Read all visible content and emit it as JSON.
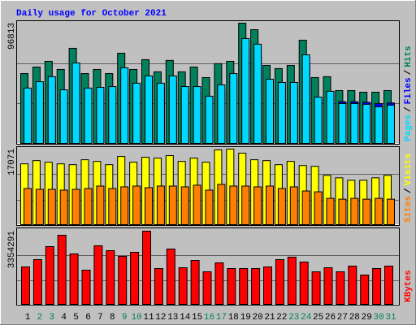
{
  "chart_data": [
    {
      "type": "bar",
      "title": "Daily usage for October 2021",
      "ylim": [
        0,
        96813
      ],
      "yticks": [
        96813
      ],
      "legend_separator": "/",
      "series": [
        {
          "name": "Hits",
          "color": "#00805c",
          "values": [
            56500,
            61700,
            66300,
            59800,
            76700,
            56500,
            59800,
            56500,
            72800,
            59800,
            67600,
            57900,
            67000,
            57900,
            61700,
            53300,
            64400,
            66300,
            96813,
            91600,
            63000,
            60500,
            63000,
            83200,
            53300,
            54000,
            42900,
            42900,
            41600,
            41600,
            42900
          ]
        },
        {
          "name": "Files",
          "color": "#0000ff",
          "values": [
            40400,
            45000,
            48600,
            39100,
            58500,
            40400,
            41000,
            41500,
            55000,
            43900,
            49100,
            43900,
            49100,
            41500,
            41500,
            34500,
            42700,
            50800,
            76000,
            72000,
            46800,
            44500,
            44500,
            64300,
            33900,
            38100,
            34000,
            34000,
            33500,
            32500,
            33000
          ]
        },
        {
          "name": "Pages",
          "color": "#00d8ff",
          "values": [
            44900,
            50000,
            54000,
            43500,
            65000,
            44900,
            45500,
            46100,
            61100,
            48800,
            54600,
            48800,
            54600,
            46100,
            46100,
            38400,
            47500,
            56500,
            84500,
            80000,
            52000,
            49400,
            49400,
            71500,
            37700,
            42300,
            32500,
            32500,
            31900,
            29900,
            31200
          ]
        }
      ]
    },
    {
      "type": "bar",
      "ylim": [
        0,
        17071
      ],
      "yticks": [
        17071
      ],
      "legend_separator": "/",
      "series": [
        {
          "name": "Visits",
          "color": "#ffff00",
          "values": [
            13770,
            14500,
            14140,
            13770,
            13590,
            14690,
            14320,
            13590,
            15420,
            14140,
            15240,
            15060,
            15610,
            14320,
            15060,
            14140,
            16890,
            17071,
            16160,
            14690,
            14500,
            13590,
            14320,
            13400,
            13220,
            11200,
            10650,
            10100,
            10100,
            10650,
            11200
          ]
        },
        {
          "name": "Sites",
          "color": "#ff8000",
          "values": [
            8260,
            8080,
            8080,
            7900,
            8080,
            8260,
            8810,
            8260,
            8630,
            8810,
            8450,
            8810,
            8810,
            8630,
            9000,
            7900,
            9180,
            8810,
            8810,
            8630,
            8810,
            8260,
            8630,
            7710,
            7530,
            6060,
            5880,
            6060,
            5880,
            6060,
            5880
          ]
        }
      ]
    },
    {
      "type": "bar",
      "ylim": [
        0,
        3354291
      ],
      "yticks": [
        3354291
      ],
      "categories": [
        "1",
        "2",
        "3",
        "4",
        "5",
        "6",
        "7",
        "8",
        "9",
        "10",
        "11",
        "12",
        "13",
        "14",
        "15",
        "16",
        "17",
        "18",
        "19",
        "20",
        "21",
        "22",
        "23",
        "24",
        "25",
        "26",
        "27",
        "28",
        "29",
        "30",
        "31"
      ],
      "weekend": [
        false,
        true,
        true,
        false,
        false,
        false,
        false,
        false,
        true,
        true,
        false,
        false,
        false,
        false,
        false,
        true,
        true,
        false,
        false,
        false,
        false,
        false,
        true,
        true,
        false,
        false,
        false,
        false,
        false,
        true,
        true
      ],
      "weekend_color": "#00805c",
      "series": [
        {
          "name": "KBytes",
          "color": "#ff0000",
          "values": [
            1732000,
            2064000,
            2654000,
            3170000,
            2322000,
            1585000,
            2691000,
            2470000,
            2212000,
            2396000,
            3354291,
            1659000,
            2543000,
            1696000,
            2027000,
            1511000,
            1917000,
            1659000,
            1659000,
            1659000,
            1732000,
            2064000,
            2175000,
            1954000,
            1511000,
            1696000,
            1511000,
            1769000,
            1364000,
            1659000,
            1769000
          ]
        }
      ]
    }
  ]
}
